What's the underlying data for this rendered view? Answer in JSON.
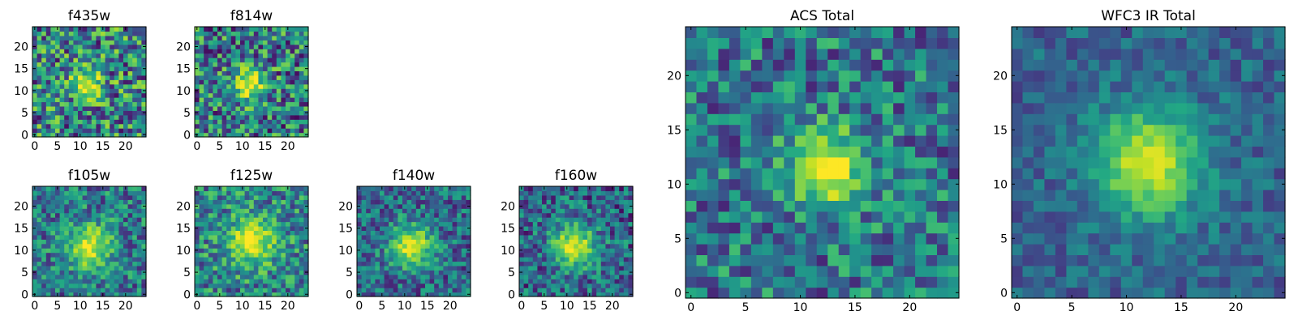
{
  "chart_data": [
    {
      "type": "heatmap",
      "title": "f435w",
      "xticks": [
        "0",
        "5",
        "10",
        "15",
        "20"
      ],
      "yticks": [
        "0",
        "5",
        "10",
        "15",
        "20"
      ],
      "xlim": [
        -0.5,
        24.5
      ],
      "ylim": [
        -0.5,
        24.5
      ],
      "colormap": "viridis",
      "center": [
        11.5,
        11.5
      ],
      "spread": 2.4,
      "noise": 0.42,
      "peak": 0.55,
      "base": 0.45
    },
    {
      "type": "heatmap",
      "title": "f814w",
      "xticks": [
        "0",
        "5",
        "10",
        "15",
        "20"
      ],
      "yticks": [
        "0",
        "5",
        "10",
        "15",
        "20"
      ],
      "xlim": [
        -0.5,
        24.5
      ],
      "ylim": [
        -0.5,
        24.5
      ],
      "colormap": "viridis",
      "center": [
        11.5,
        11.5
      ],
      "spread": 2.6,
      "noise": 0.4,
      "peak": 0.58,
      "base": 0.42
    },
    {
      "type": "heatmap",
      "title": "f105w",
      "xticks": [
        "0",
        "5",
        "10",
        "15",
        "20"
      ],
      "yticks": [
        "0",
        "5",
        "10",
        "15",
        "20"
      ],
      "xlim": [
        -0.5,
        24.5
      ],
      "ylim": [
        -0.5,
        24.5
      ],
      "colormap": "viridis",
      "center": [
        12,
        11
      ],
      "spread": 3.6,
      "noise": 0.3,
      "peak": 0.55,
      "base": 0.4
    },
    {
      "type": "heatmap",
      "title": "f125w",
      "xticks": [
        "0",
        "5",
        "10",
        "15",
        "20"
      ],
      "yticks": [
        "0",
        "5",
        "10",
        "15",
        "20"
      ],
      "xlim": [
        -0.5,
        24.5
      ],
      "ylim": [
        -0.5,
        24.5
      ],
      "colormap": "viridis",
      "center": [
        12,
        12
      ],
      "spread": 3.8,
      "noise": 0.32,
      "peak": 0.52,
      "base": 0.45
    },
    {
      "type": "heatmap",
      "title": "f140w",
      "xticks": [
        "0",
        "5",
        "10",
        "15",
        "20"
      ],
      "yticks": [
        "0",
        "5",
        "10",
        "15",
        "20"
      ],
      "xlim": [
        -0.5,
        24.5
      ],
      "ylim": [
        -0.5,
        24.5
      ],
      "colormap": "viridis",
      "center": [
        11.5,
        11
      ],
      "spread": 3.4,
      "noise": 0.28,
      "peak": 0.6,
      "base": 0.35
    },
    {
      "type": "heatmap",
      "title": "f160w",
      "xticks": [
        "0",
        "5",
        "10",
        "15",
        "20"
      ],
      "yticks": [
        "0",
        "5",
        "10",
        "15",
        "20"
      ],
      "xlim": [
        -0.5,
        24.5
      ],
      "ylim": [
        -0.5,
        24.5
      ],
      "colormap": "viridis",
      "center": [
        11.5,
        11
      ],
      "spread": 3.4,
      "noise": 0.3,
      "peak": 0.62,
      "base": 0.33
    },
    {
      "type": "heatmap",
      "title": "ACS Total",
      "xticks": [
        "0",
        "5",
        "10",
        "15",
        "20"
      ],
      "yticks": [
        "0",
        "5",
        "10",
        "15",
        "20"
      ],
      "xlim": [
        -0.5,
        24.5
      ],
      "ylim": [
        -0.5,
        24.5
      ],
      "colormap": "viridis",
      "center": [
        12.5,
        11.5
      ],
      "spread": 2.5,
      "noise": 0.3,
      "peak": 0.62,
      "base": 0.4
    },
    {
      "type": "heatmap",
      "title": "WFC3 IR Total",
      "xticks": [
        "0",
        "5",
        "10",
        "15",
        "20"
      ],
      "yticks": [
        "0",
        "5",
        "10",
        "15",
        "20"
      ],
      "xlim": [
        -0.5,
        24.5
      ],
      "ylim": [
        -0.5,
        24.5
      ],
      "colormap": "viridis",
      "center": [
        12,
        12
      ],
      "spread": 3.6,
      "noise": 0.16,
      "peak": 0.62,
      "base": 0.32
    }
  ]
}
